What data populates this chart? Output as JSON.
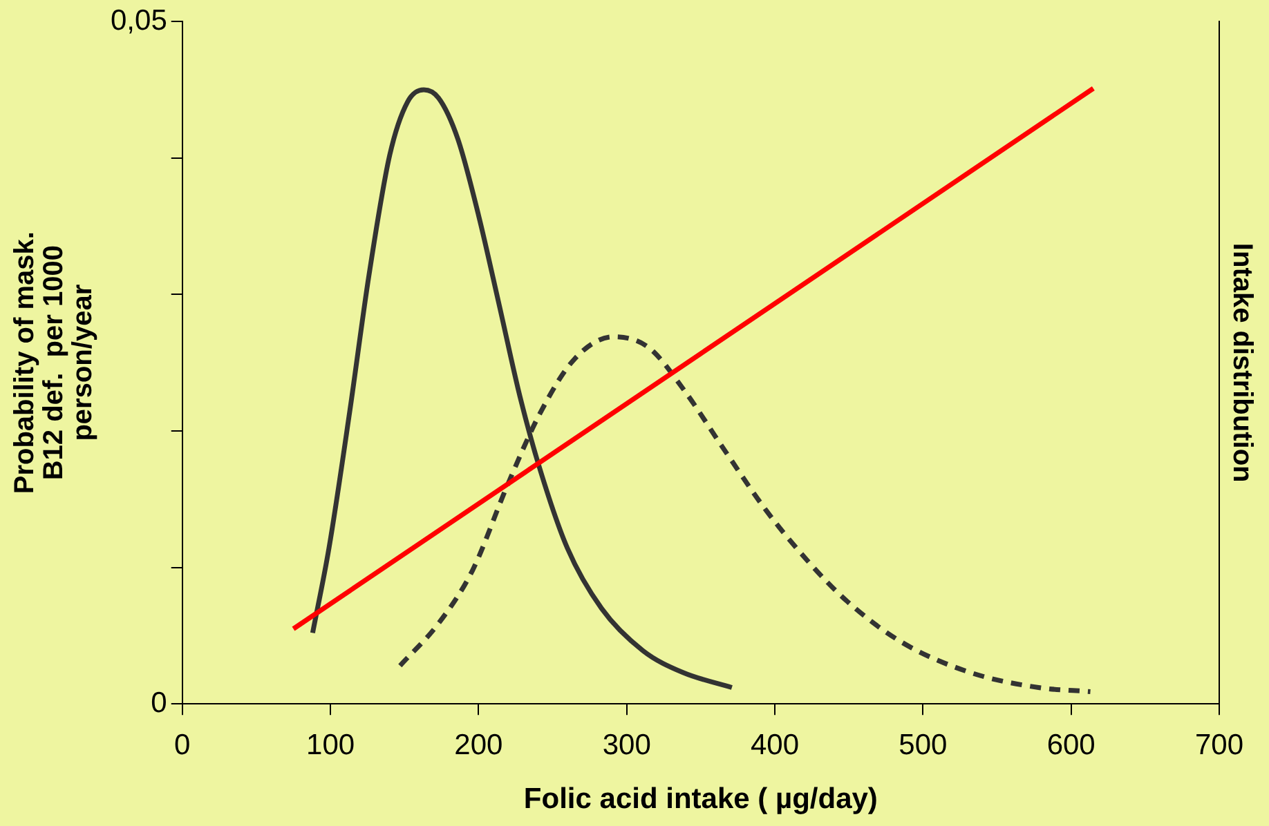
{
  "chart_data": {
    "type": "line",
    "xlabel": "Folic acid intake ( µg/day)",
    "ylabel": "Probability of mask.\nB12 def.  per 1000\nperson/year",
    "y2label": "Intake distribution",
    "xlim": [
      0,
      700
    ],
    "xticks": [
      0,
      100,
      200,
      300,
      400,
      500,
      600,
      700
    ],
    "ylim": [
      0,
      0.05
    ],
    "yticks": [
      {
        "value": 0,
        "label": "0"
      },
      {
        "value": 0.01,
        "label": null
      },
      {
        "value": 0.02,
        "label": null
      },
      {
        "value": 0.03,
        "label": null
      },
      {
        "value": 0.04,
        "label": null
      },
      {
        "value": 0.05,
        "label": "0,05"
      }
    ],
    "grid": false,
    "legend": false,
    "marker": "none",
    "series": [
      {
        "color": "#ff0000",
        "line_style": "solid",
        "x": [
          75,
          615
        ],
        "values": [
          0.0055,
          0.0451
        ]
      },
      {
        "color": "#333333",
        "line_style": "solid",
        "x": [
          88,
          99,
          113,
          126,
          140,
          152,
          163,
          173,
          186,
          200,
          214,
          228,
          242,
          260,
          283,
          311,
          338,
          371
        ],
        "values": [
          0.0052,
          0.0114,
          0.0214,
          0.0314,
          0.0402,
          0.0441,
          0.045,
          0.0444,
          0.0414,
          0.0358,
          0.0292,
          0.0225,
          0.017,
          0.0114,
          0.007,
          0.0039,
          0.0023,
          0.0012
        ]
      },
      {
        "color": "#333333",
        "line_style": "dashed",
        "x": [
          147,
          173,
          196,
          219,
          242,
          265,
          291,
          315,
          338,
          366,
          394,
          422,
          449,
          486,
          532,
          578,
          613
        ],
        "values": [
          0.0028,
          0.0059,
          0.0098,
          0.0159,
          0.0214,
          0.0253,
          0.0269,
          0.0261,
          0.0231,
          0.0186,
          0.0142,
          0.0105,
          0.0075,
          0.0045,
          0.0023,
          0.0012,
          0.0009
        ]
      }
    ]
  }
}
